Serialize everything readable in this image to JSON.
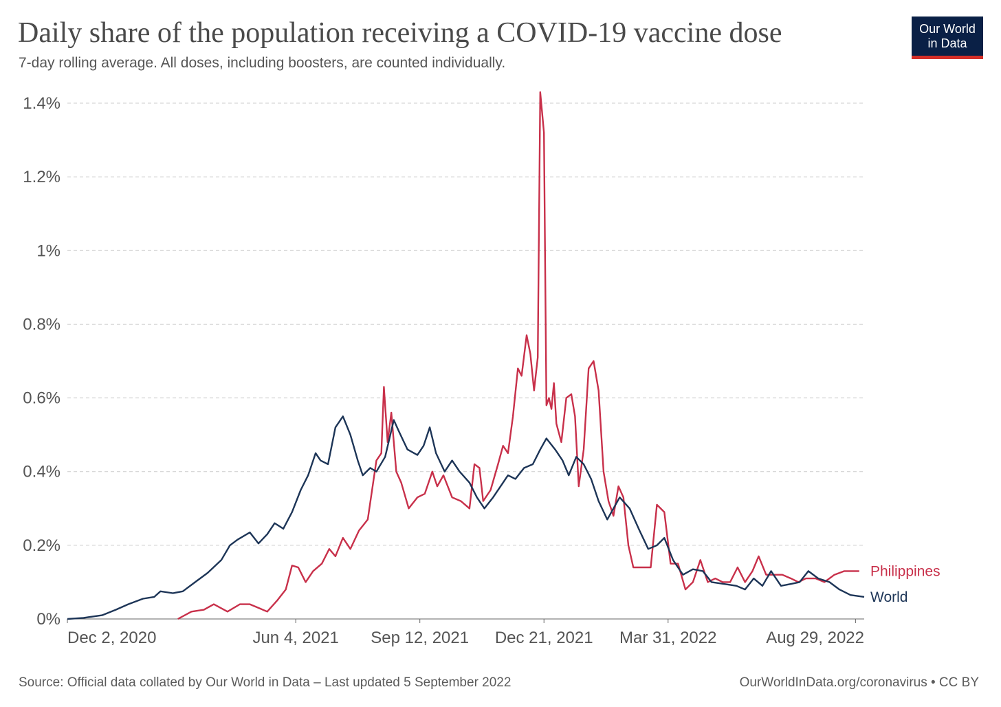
{
  "header": {
    "title": "Daily share of the population receiving a COVID-19 vaccine dose",
    "subtitle": "7-day rolling average. All doses, including boosters, are counted individually."
  },
  "logo": {
    "line1": "Our World",
    "line2": "in Data"
  },
  "footer": {
    "source": "Source: Official data collated by Our World in Data – Last updated 5 September 2022",
    "credit": "OurWorldInData.org/coronavirus • CC BY"
  },
  "colors": {
    "philippines": "#c8304a",
    "world": "#1d3557",
    "grid": "#cccccc",
    "axis_text": "#555555"
  },
  "chart_data": {
    "type": "line",
    "title": "Daily share of the population receiving a COVID-19 vaccine dose",
    "subtitle": "7-day rolling average. All doses, including boosters, are counted individually.",
    "y_unit": "%",
    "ylim": [
      0,
      1.4
    ],
    "xlim": [
      "2020-12-02",
      "2022-09-05"
    ],
    "y_ticks": [
      0,
      0.2,
      0.4,
      0.6,
      0.8,
      1.0,
      1.2,
      1.4
    ],
    "y_tick_labels": [
      "0%",
      "0.2%",
      "0.4%",
      "0.6%",
      "0.8%",
      "1%",
      "1.2%",
      "1.4%"
    ],
    "x_ticks": [
      "2020-12-02",
      "2021-06-04",
      "2021-09-12",
      "2021-12-21",
      "2022-03-31",
      "2022-08-29"
    ],
    "x_tick_labels": [
      "Dec 2, 2020",
      "Jun 4, 2021",
      "Sep 12, 2021",
      "Dec 21, 2021",
      "Mar 31, 2022",
      "Aug 29, 2022"
    ],
    "grid": "horizontal dashed",
    "legend": "inline labels at right end of lines",
    "series": [
      {
        "name": "World",
        "color": "#1d3557",
        "points": [
          [
            "2020-12-02",
            0
          ],
          [
            "2020-12-15",
            0.003
          ],
          [
            "2020-12-30",
            0.01
          ],
          [
            "2021-01-10",
            0.025
          ],
          [
            "2021-01-20",
            0.04
          ],
          [
            "2021-02-01",
            0.055
          ],
          [
            "2021-02-10",
            0.06
          ],
          [
            "2021-02-15",
            0.075
          ],
          [
            "2021-02-25",
            0.07
          ],
          [
            "2021-03-05",
            0.075
          ],
          [
            "2021-03-15",
            0.1
          ],
          [
            "2021-03-25",
            0.125
          ],
          [
            "2021-04-05",
            0.16
          ],
          [
            "2021-04-12",
            0.2
          ],
          [
            "2021-04-18",
            0.215
          ],
          [
            "2021-04-28",
            0.235
          ],
          [
            "2021-05-05",
            0.205
          ],
          [
            "2021-05-12",
            0.23
          ],
          [
            "2021-05-18",
            0.26
          ],
          [
            "2021-05-25",
            0.245
          ],
          [
            "2021-06-01",
            0.29
          ],
          [
            "2021-06-08",
            0.35
          ],
          [
            "2021-06-14",
            0.39
          ],
          [
            "2021-06-20",
            0.45
          ],
          [
            "2021-06-24",
            0.43
          ],
          [
            "2021-06-30",
            0.42
          ],
          [
            "2021-07-06",
            0.52
          ],
          [
            "2021-07-12",
            0.55
          ],
          [
            "2021-07-18",
            0.5
          ],
          [
            "2021-07-24",
            0.43
          ],
          [
            "2021-07-28",
            0.39
          ],
          [
            "2021-08-03",
            0.41
          ],
          [
            "2021-08-08",
            0.4
          ],
          [
            "2021-08-15",
            0.44
          ],
          [
            "2021-08-22",
            0.54
          ],
          [
            "2021-08-26",
            0.51
          ],
          [
            "2021-09-02",
            0.46
          ],
          [
            "2021-09-10",
            0.445
          ],
          [
            "2021-09-15",
            0.47
          ],
          [
            "2021-09-20",
            0.52
          ],
          [
            "2021-09-25",
            0.45
          ],
          [
            "2021-10-02",
            0.4
          ],
          [
            "2021-10-08",
            0.43
          ],
          [
            "2021-10-14",
            0.4
          ],
          [
            "2021-10-22",
            0.37
          ],
          [
            "2021-10-28",
            0.33
          ],
          [
            "2021-11-03",
            0.3
          ],
          [
            "2021-11-10",
            0.33
          ],
          [
            "2021-11-18",
            0.37
          ],
          [
            "2021-11-22",
            0.39
          ],
          [
            "2021-11-28",
            0.38
          ],
          [
            "2021-12-05",
            0.41
          ],
          [
            "2021-12-12",
            0.42
          ],
          [
            "2021-12-18",
            0.46
          ],
          [
            "2021-12-23",
            0.49
          ],
          [
            "2021-12-30",
            0.46
          ],
          [
            "2022-01-05",
            0.43
          ],
          [
            "2022-01-10",
            0.39
          ],
          [
            "2022-01-16",
            0.44
          ],
          [
            "2022-01-22",
            0.42
          ],
          [
            "2022-01-28",
            0.38
          ],
          [
            "2022-02-03",
            0.32
          ],
          [
            "2022-02-10",
            0.27
          ],
          [
            "2022-02-15",
            0.3
          ],
          [
            "2022-02-20",
            0.33
          ],
          [
            "2022-02-28",
            0.3
          ],
          [
            "2022-03-08",
            0.24
          ],
          [
            "2022-03-15",
            0.19
          ],
          [
            "2022-03-22",
            0.2
          ],
          [
            "2022-03-28",
            0.22
          ],
          [
            "2022-04-04",
            0.16
          ],
          [
            "2022-04-12",
            0.12
          ],
          [
            "2022-04-20",
            0.135
          ],
          [
            "2022-04-28",
            0.13
          ],
          [
            "2022-05-05",
            0.1
          ],
          [
            "2022-05-15",
            0.095
          ],
          [
            "2022-05-25",
            0.09
          ],
          [
            "2022-06-01",
            0.08
          ],
          [
            "2022-06-08",
            0.11
          ],
          [
            "2022-06-15",
            0.09
          ],
          [
            "2022-06-22",
            0.13
          ],
          [
            "2022-06-30",
            0.09
          ],
          [
            "2022-07-08",
            0.095
          ],
          [
            "2022-07-15",
            0.1
          ],
          [
            "2022-07-22",
            0.13
          ],
          [
            "2022-07-30",
            0.11
          ],
          [
            "2022-08-08",
            0.1
          ],
          [
            "2022-08-16",
            0.08
          ],
          [
            "2022-08-25",
            0.065
          ],
          [
            "2022-09-05",
            0.06
          ]
        ]
      },
      {
        "name": "Philippines",
        "color": "#c8304a",
        "points": [
          [
            "2021-03-01",
            0
          ],
          [
            "2021-03-12",
            0.02
          ],
          [
            "2021-03-22",
            0.025
          ],
          [
            "2021-03-30",
            0.04
          ],
          [
            "2021-04-10",
            0.02
          ],
          [
            "2021-04-20",
            0.04
          ],
          [
            "2021-04-28",
            0.04
          ],
          [
            "2021-05-05",
            0.03
          ],
          [
            "2021-05-12",
            0.02
          ],
          [
            "2021-05-20",
            0.05
          ],
          [
            "2021-05-27",
            0.08
          ],
          [
            "2021-06-01",
            0.145
          ],
          [
            "2021-06-06",
            0.14
          ],
          [
            "2021-06-12",
            0.1
          ],
          [
            "2021-06-18",
            0.13
          ],
          [
            "2021-06-25",
            0.15
          ],
          [
            "2021-07-01",
            0.19
          ],
          [
            "2021-07-06",
            0.17
          ],
          [
            "2021-07-12",
            0.22
          ],
          [
            "2021-07-18",
            0.19
          ],
          [
            "2021-07-25",
            0.24
          ],
          [
            "2021-08-01",
            0.27
          ],
          [
            "2021-08-08",
            0.43
          ],
          [
            "2021-08-12",
            0.45
          ],
          [
            "2021-08-14",
            0.63
          ],
          [
            "2021-08-17",
            0.48
          ],
          [
            "2021-08-20",
            0.56
          ],
          [
            "2021-08-24",
            0.4
          ],
          [
            "2021-08-28",
            0.37
          ],
          [
            "2021-09-03",
            0.3
          ],
          [
            "2021-09-10",
            0.33
          ],
          [
            "2021-09-16",
            0.34
          ],
          [
            "2021-09-22",
            0.4
          ],
          [
            "2021-09-26",
            0.36
          ],
          [
            "2021-10-01",
            0.39
          ],
          [
            "2021-10-08",
            0.33
          ],
          [
            "2021-10-15",
            0.32
          ],
          [
            "2021-10-22",
            0.3
          ],
          [
            "2021-10-26",
            0.42
          ],
          [
            "2021-10-30",
            0.41
          ],
          [
            "2021-11-02",
            0.32
          ],
          [
            "2021-11-08",
            0.35
          ],
          [
            "2021-11-14",
            0.42
          ],
          [
            "2021-11-18",
            0.47
          ],
          [
            "2021-11-22",
            0.45
          ],
          [
            "2021-11-26",
            0.55
          ],
          [
            "2021-11-30",
            0.68
          ],
          [
            "2021-12-03",
            0.66
          ],
          [
            "2021-12-07",
            0.77
          ],
          [
            "2021-12-10",
            0.72
          ],
          [
            "2021-12-13",
            0.62
          ],
          [
            "2021-12-16",
            0.71
          ],
          [
            "2021-12-18",
            1.43
          ],
          [
            "2021-12-21",
            1.32
          ],
          [
            "2021-12-23",
            0.58
          ],
          [
            "2021-12-25",
            0.6
          ],
          [
            "2021-12-27",
            0.57
          ],
          [
            "2021-12-29",
            0.64
          ],
          [
            "2021-12-31",
            0.53
          ],
          [
            "2022-01-04",
            0.48
          ],
          [
            "2022-01-08",
            0.6
          ],
          [
            "2022-01-12",
            0.61
          ],
          [
            "2022-01-15",
            0.55
          ],
          [
            "2022-01-18",
            0.36
          ],
          [
            "2022-01-22",
            0.46
          ],
          [
            "2022-01-26",
            0.68
          ],
          [
            "2022-01-30",
            0.7
          ],
          [
            "2022-02-03",
            0.62
          ],
          [
            "2022-02-07",
            0.4
          ],
          [
            "2022-02-11",
            0.32
          ],
          [
            "2022-02-15",
            0.28
          ],
          [
            "2022-02-19",
            0.36
          ],
          [
            "2022-02-23",
            0.33
          ],
          [
            "2022-02-27",
            0.2
          ],
          [
            "2022-03-03",
            0.14
          ],
          [
            "2022-03-10",
            0.14
          ],
          [
            "2022-03-17",
            0.14
          ],
          [
            "2022-03-22",
            0.31
          ],
          [
            "2022-03-28",
            0.29
          ],
          [
            "2022-04-02",
            0.15
          ],
          [
            "2022-04-08",
            0.15
          ],
          [
            "2022-04-14",
            0.08
          ],
          [
            "2022-04-20",
            0.1
          ],
          [
            "2022-04-26",
            0.16
          ],
          [
            "2022-05-02",
            0.1
          ],
          [
            "2022-05-08",
            0.11
          ],
          [
            "2022-05-14",
            0.1
          ],
          [
            "2022-05-20",
            0.1
          ],
          [
            "2022-05-26",
            0.14
          ],
          [
            "2022-06-01",
            0.1
          ],
          [
            "2022-06-07",
            0.13
          ],
          [
            "2022-06-12",
            0.17
          ],
          [
            "2022-06-18",
            0.12
          ],
          [
            "2022-06-24",
            0.12
          ],
          [
            "2022-07-01",
            0.12
          ],
          [
            "2022-07-08",
            0.11
          ],
          [
            "2022-07-14",
            0.1
          ],
          [
            "2022-07-20",
            0.11
          ],
          [
            "2022-07-28",
            0.11
          ],
          [
            "2022-08-04",
            0.1
          ],
          [
            "2022-08-12",
            0.12
          ],
          [
            "2022-08-20",
            0.13
          ],
          [
            "2022-09-01",
            0.13
          ]
        ]
      }
    ],
    "series_labels": {
      "philippines": "Philippines",
      "world": "World"
    }
  }
}
